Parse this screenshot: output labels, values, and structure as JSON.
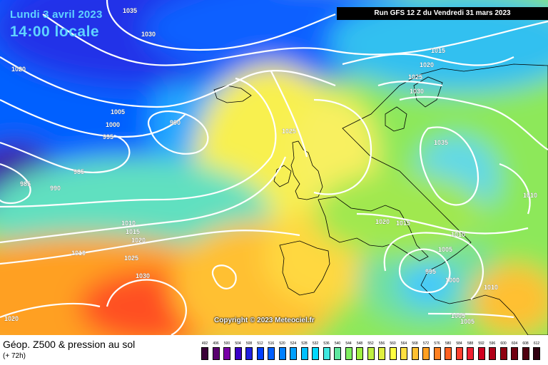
{
  "title": {
    "date": "Lundi 3 avril 2023",
    "time": "14:00 locale"
  },
  "run_info": "Run GFS 12 Z du Vendredi 31 mars 2023",
  "copyright": "Copyright © 2023 Meteociel.fr",
  "footer": {
    "title": "Géop. Z500 & pression au sol",
    "subtitle": "(+ 72h)"
  },
  "isobar_labels": [
    "1035",
    "1030",
    "1020",
    "1005",
    "1000",
    "995",
    "990",
    "985",
    "985",
    "990",
    "1025",
    "1015",
    "1020",
    "1025",
    "1030",
    "1035",
    "1010",
    "1020",
    "1015",
    "1010",
    "1005",
    "995",
    "1000",
    "1010",
    "1010",
    "1015",
    "1020",
    "1010",
    "1025",
    "1030",
    "1020",
    "1005",
    "1005"
  ],
  "legend": {
    "values": [
      "492",
      "496",
      "500",
      "504",
      "508",
      "512",
      "516",
      "520",
      "524",
      "528",
      "532",
      "536",
      "540",
      "544",
      "548",
      "552",
      "556",
      "560",
      "564",
      "568",
      "572",
      "576",
      "580",
      "584",
      "588",
      "592",
      "596",
      "600",
      "604",
      "608",
      "612"
    ],
    "colors": [
      "#3a0038",
      "#5a0070",
      "#7a00a8",
      "#3a00c8",
      "#2020e0",
      "#0040ff",
      "#0060ff",
      "#0080ff",
      "#00a0ff",
      "#00c0ff",
      "#00d8ff",
      "#40e8e0",
      "#60e8a0",
      "#80f060",
      "#a0f040",
      "#c0f040",
      "#e0f040",
      "#ffff40",
      "#ffe040",
      "#ffc030",
      "#ffa020",
      "#ff8020",
      "#ff6020",
      "#ff4030",
      "#f02030",
      "#d00020",
      "#b00018",
      "#900010",
      "#700010",
      "#500010",
      "#300010"
    ]
  }
}
